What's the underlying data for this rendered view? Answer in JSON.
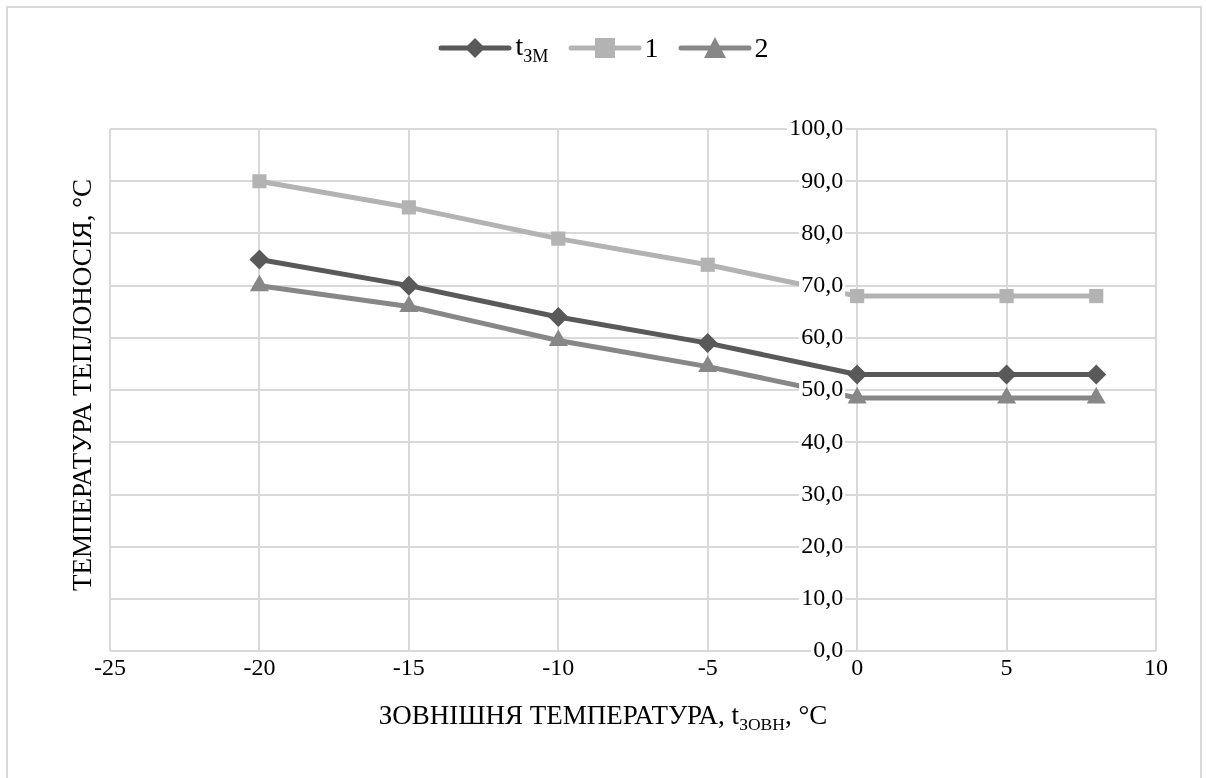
{
  "chart_data": {
    "type": "line",
    "xlabel": "ЗОВНІШНЯ ТЕМПЕРАТУРА,  t$_{ЗОВН}$, °C",
    "ylabel": "ТЕМПЕРАТУРА  ТЕПЛОНОСІЯ, °C",
    "x": [
      -20,
      -15,
      -10,
      -5,
      0,
      5,
      8
    ],
    "series": [
      {
        "name": "t$_{ЗМ}$",
        "color": "#595959",
        "marker": "diamond",
        "values": [
          75,
          70,
          64,
          59,
          53,
          53,
          53
        ]
      },
      {
        "name": "1",
        "color": "#b3b3b3",
        "marker": "square",
        "values": [
          90,
          85,
          79,
          74,
          68,
          68,
          68
        ]
      },
      {
        "name": "2",
        "color": "#878787",
        "marker": "triangle",
        "values": [
          70,
          66,
          59.5,
          54.5,
          48.5,
          48.5,
          48.5
        ]
      }
    ],
    "xlim": [
      -25,
      10
    ],
    "xticks": [
      -25,
      -20,
      -15,
      -10,
      -5,
      0,
      5,
      10
    ],
    "ylim": [
      0,
      100
    ],
    "yticks": [
      {
        "value": 0,
        "label": "0,0"
      },
      {
        "value": 10,
        "label": "10,0"
      },
      {
        "value": 20,
        "label": "20,0"
      },
      {
        "value": 30,
        "label": "30,0"
      },
      {
        "value": 40,
        "label": "40,0"
      },
      {
        "value": 50,
        "label": "50,0"
      },
      {
        "value": 60,
        "label": "60,0"
      },
      {
        "value": 70,
        "label": "70,0"
      },
      {
        "value": 80,
        "label": "80,0"
      },
      {
        "value": 90,
        "label": "90,0"
      },
      {
        "value": 100,
        "label": "100,0"
      }
    ],
    "grid": true,
    "legend": "top",
    "line_style": "solid"
  }
}
